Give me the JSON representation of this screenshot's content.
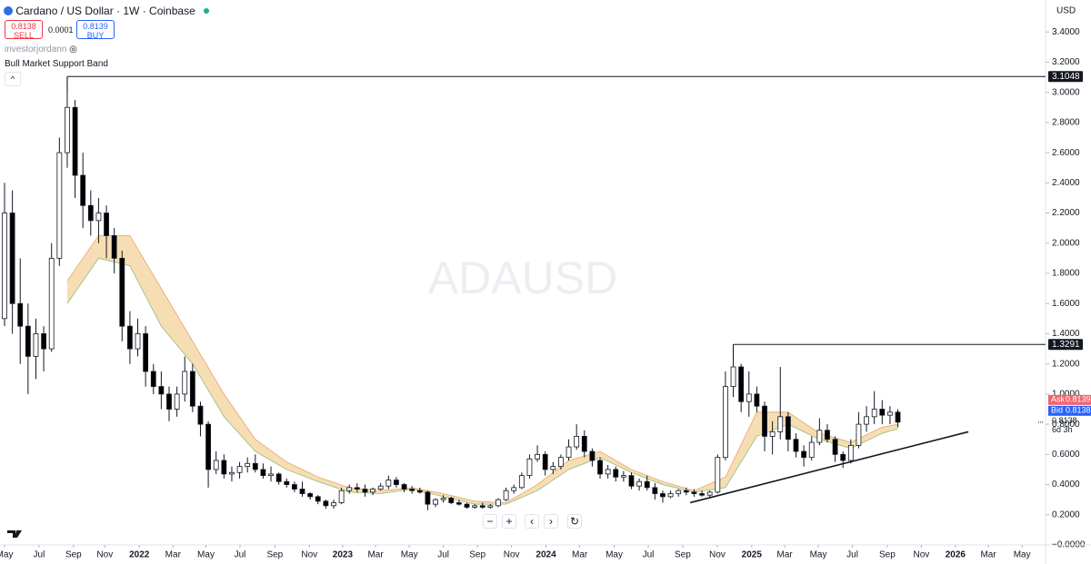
{
  "header": {
    "title": "Cardano / US Dollar · 1W · Coinbase",
    "sell": {
      "price": 0.8138,
      "label": "SELL"
    },
    "spread": 0.0001,
    "buy": {
      "price": 0.8139,
      "label": "BUY"
    },
    "author": "investorjordann",
    "currency": "USD"
  },
  "chart_data": {
    "type": "candlestick",
    "watermark": "ADAUSD",
    "x": [
      0,
      2,
      4,
      6,
      8,
      10,
      12,
      14,
      16,
      18,
      20,
      22,
      24,
      26,
      28,
      30,
      32,
      34,
      36,
      38,
      40,
      42,
      44,
      46,
      48,
      50,
      52,
      54,
      56,
      58,
      60,
      62,
      64,
      66,
      68,
      70,
      72,
      74,
      76,
      78,
      80,
      82,
      84,
      86,
      88,
      90,
      92,
      94,
      96,
      98,
      100,
      102,
      104,
      106,
      108,
      110,
      112,
      114,
      116,
      118,
      120,
      122,
      124,
      126,
      128,
      130,
      132,
      134,
      136,
      138,
      140,
      142,
      144,
      146,
      148,
      150,
      152,
      154,
      156,
      158,
      160,
      162,
      164,
      166,
      168,
      170,
      172,
      174,
      176,
      178,
      180,
      182,
      184,
      186,
      188,
      190,
      192,
      194,
      196,
      198,
      200,
      202,
      204,
      206,
      208,
      210,
      212,
      214,
      216,
      218,
      220,
      222,
      224,
      226,
      228
    ],
    "open": [
      1.5,
      2.2,
      1.6,
      1.45,
      1.25,
      1.4,
      1.3,
      1.9,
      2.6,
      2.9,
      2.45,
      2.25,
      2.15,
      2.2,
      2.05,
      1.9,
      1.45,
      1.3,
      1.4,
      1.15,
      1.05,
      1.0,
      0.9,
      1.0,
      1.15,
      0.92,
      0.8,
      0.5,
      0.56,
      0.47,
      0.48,
      0.52,
      0.54,
      0.5,
      0.46,
      0.47,
      0.42,
      0.4,
      0.37,
      0.34,
      0.32,
      0.29,
      0.26,
      0.28,
      0.36,
      0.38,
      0.37,
      0.35,
      0.37,
      0.39,
      0.43,
      0.4,
      0.37,
      0.36,
      0.35,
      0.27,
      0.3,
      0.31,
      0.28,
      0.27,
      0.25,
      0.26,
      0.25,
      0.26,
      0.3,
      0.36,
      0.38,
      0.46,
      0.57,
      0.6,
      0.5,
      0.52,
      0.58,
      0.65,
      0.72,
      0.62,
      0.56,
      0.47,
      0.5,
      0.45,
      0.46,
      0.39,
      0.42,
      0.38,
      0.34,
      0.32,
      0.34,
      0.36,
      0.35,
      0.34,
      0.33,
      0.35,
      0.58,
      1.05,
      1.18,
      0.95,
      1.0,
      0.92,
      0.72,
      0.75,
      0.85,
      0.7,
      0.62,
      0.58,
      0.68,
      0.76,
      0.7,
      0.6,
      0.56,
      0.66,
      0.8,
      0.85,
      0.9,
      0.86,
      0.88
    ],
    "high": [
      2.4,
      2.35,
      1.9,
      1.6,
      1.5,
      1.45,
      2.0,
      2.7,
      3.1048,
      2.95,
      2.6,
      2.35,
      2.3,
      2.25,
      2.1,
      1.95,
      1.55,
      1.5,
      1.45,
      1.2,
      1.15,
      1.05,
      1.05,
      1.25,
      1.2,
      0.95,
      0.82,
      0.62,
      0.6,
      0.52,
      0.55,
      0.58,
      0.6,
      0.54,
      0.52,
      0.48,
      0.44,
      0.42,
      0.42,
      0.35,
      0.33,
      0.3,
      0.3,
      0.38,
      0.4,
      0.41,
      0.4,
      0.38,
      0.41,
      0.46,
      0.45,
      0.41,
      0.39,
      0.38,
      0.36,
      0.31,
      0.33,
      0.32,
      0.3,
      0.28,
      0.27,
      0.28,
      0.27,
      0.31,
      0.38,
      0.4,
      0.48,
      0.6,
      0.66,
      0.62,
      0.55,
      0.6,
      0.7,
      0.8,
      0.76,
      0.64,
      0.58,
      0.53,
      0.52,
      0.49,
      0.48,
      0.44,
      0.46,
      0.41,
      0.36,
      0.36,
      0.37,
      0.38,
      0.37,
      0.36,
      0.36,
      0.6,
      1.15,
      1.3291,
      1.2,
      1.15,
      1.05,
      0.95,
      0.82,
      1.18,
      0.88,
      0.74,
      0.66,
      0.72,
      0.84,
      0.8,
      0.72,
      0.62,
      0.7,
      0.88,
      0.92,
      1.02,
      0.96,
      0.92,
      0.9
    ],
    "low": [
      1.45,
      1.4,
      1.2,
      1.0,
      1.1,
      1.15,
      1.28,
      1.85,
      2.5,
      2.3,
      2.1,
      2.05,
      2.0,
      1.9,
      1.8,
      1.35,
      1.2,
      1.25,
      1.05,
      1.0,
      0.9,
      0.82,
      0.85,
      0.95,
      0.88,
      0.72,
      0.38,
      0.47,
      0.44,
      0.42,
      0.44,
      0.48,
      0.48,
      0.44,
      0.42,
      0.4,
      0.38,
      0.35,
      0.32,
      0.3,
      0.27,
      0.24,
      0.24,
      0.27,
      0.34,
      0.35,
      0.32,
      0.33,
      0.36,
      0.37,
      0.38,
      0.35,
      0.34,
      0.34,
      0.23,
      0.25,
      0.28,
      0.27,
      0.26,
      0.24,
      0.24,
      0.24,
      0.24,
      0.25,
      0.29,
      0.34,
      0.37,
      0.44,
      0.55,
      0.46,
      0.47,
      0.5,
      0.56,
      0.63,
      0.58,
      0.52,
      0.44,
      0.44,
      0.42,
      0.42,
      0.37,
      0.36,
      0.36,
      0.3,
      0.28,
      0.31,
      0.32,
      0.33,
      0.32,
      0.32,
      0.31,
      0.34,
      0.56,
      0.98,
      0.88,
      0.85,
      0.88,
      0.62,
      0.6,
      0.7,
      0.62,
      0.58,
      0.52,
      0.56,
      0.66,
      0.68,
      0.55,
      0.51,
      0.54,
      0.64,
      0.75,
      0.8,
      0.8,
      0.8,
      0.78
    ],
    "close": [
      2.2,
      1.6,
      1.45,
      1.25,
      1.4,
      1.3,
      1.9,
      2.6,
      2.9,
      2.45,
      2.25,
      2.15,
      2.2,
      2.05,
      1.9,
      1.45,
      1.3,
      1.4,
      1.15,
      1.05,
      1.0,
      0.9,
      1.0,
      1.15,
      0.92,
      0.8,
      0.5,
      0.56,
      0.47,
      0.48,
      0.52,
      0.54,
      0.5,
      0.46,
      0.47,
      0.42,
      0.4,
      0.37,
      0.34,
      0.32,
      0.29,
      0.26,
      0.28,
      0.36,
      0.38,
      0.37,
      0.35,
      0.37,
      0.39,
      0.43,
      0.4,
      0.37,
      0.36,
      0.35,
      0.27,
      0.3,
      0.31,
      0.28,
      0.27,
      0.25,
      0.26,
      0.25,
      0.26,
      0.3,
      0.36,
      0.38,
      0.46,
      0.57,
      0.6,
      0.5,
      0.52,
      0.58,
      0.65,
      0.72,
      0.62,
      0.56,
      0.47,
      0.5,
      0.45,
      0.46,
      0.39,
      0.42,
      0.38,
      0.34,
      0.32,
      0.34,
      0.36,
      0.35,
      0.34,
      0.33,
      0.35,
      0.58,
      1.05,
      1.18,
      0.95,
      1.0,
      0.92,
      0.72,
      0.75,
      0.85,
      0.7,
      0.62,
      0.58,
      0.68,
      0.76,
      0.7,
      0.6,
      0.56,
      0.66,
      0.8,
      0.85,
      0.9,
      0.86,
      0.88,
      0.8138
    ],
    "up_color": "#ffffff",
    "down_color": "#000000",
    "band": {
      "name": "Bull Market Support Band",
      "color": "#f6d7a7",
      "x": [
        16,
        24,
        32,
        40,
        48,
        56,
        64,
        72,
        80,
        88,
        96,
        104,
        112,
        120,
        128,
        136,
        144,
        152,
        160,
        168,
        176,
        184,
        192,
        200,
        208,
        216,
        224,
        228
      ],
      "upper": [
        1.75,
        2.05,
        2.05,
        1.7,
        1.35,
        1.0,
        0.7,
        0.55,
        0.45,
        0.38,
        0.36,
        0.38,
        0.34,
        0.29,
        0.28,
        0.4,
        0.56,
        0.62,
        0.5,
        0.42,
        0.36,
        0.45,
        0.88,
        0.88,
        0.74,
        0.68,
        0.78,
        0.8
      ],
      "lower": [
        1.6,
        1.9,
        1.85,
        1.45,
        1.2,
        0.85,
        0.62,
        0.5,
        0.42,
        0.35,
        0.34,
        0.37,
        0.32,
        0.27,
        0.27,
        0.36,
        0.5,
        0.58,
        0.48,
        0.4,
        0.35,
        0.38,
        0.72,
        0.8,
        0.7,
        0.64,
        0.74,
        0.77
      ]
    },
    "levels": [
      {
        "value": 3.1048,
        "from": 16
      },
      {
        "value": 1.3291,
        "from": 186
      }
    ],
    "trendline": {
      "x": [
        175,
        246
      ],
      "y": [
        0.28,
        0.75
      ]
    },
    "ask": {
      "label": "Ask",
      "value": 0.8139
    },
    "bid": {
      "label": "Bid",
      "value": 0.8138
    },
    "last": 0.8138,
    "countdown": "6d 3h",
    "xlim": [
      -1.16,
      265.7
    ],
    "xticks": [
      {
        "value": 0,
        "label": "May"
      },
      {
        "value": 8.8,
        "label": "Jul"
      },
      {
        "value": 17.6,
        "label": "Sep"
      },
      {
        "value": 25.6,
        "label": "Nov"
      },
      {
        "value": 34.4,
        "label": "2022"
      },
      {
        "value": 43,
        "label": "Mar"
      },
      {
        "value": 51.4,
        "label": "May"
      },
      {
        "value": 60.1,
        "label": "Jul"
      },
      {
        "value": 69,
        "label": "Sep"
      },
      {
        "value": 77.8,
        "label": "Nov"
      },
      {
        "value": 86.3,
        "label": "2023"
      },
      {
        "value": 94.7,
        "label": "Mar"
      },
      {
        "value": 103.3,
        "label": "May"
      },
      {
        "value": 112,
        "label": "Jul"
      },
      {
        "value": 120.7,
        "label": "Sep"
      },
      {
        "value": 129.4,
        "label": "Nov"
      },
      {
        "value": 138.2,
        "label": "2024"
      },
      {
        "value": 146.8,
        "label": "Mar"
      },
      {
        "value": 155.6,
        "label": "May"
      },
      {
        "value": 164.3,
        "label": "Jul"
      },
      {
        "value": 173.1,
        "label": "Sep"
      },
      {
        "value": 181.9,
        "label": "Nov"
      },
      {
        "value": 190.7,
        "label": "2025"
      },
      {
        "value": 199.1,
        "label": "Mar"
      },
      {
        "value": 207.7,
        "label": "May"
      },
      {
        "value": 216.4,
        "label": "Jul"
      },
      {
        "value": 225.3,
        "label": "Sep"
      },
      {
        "value": 234,
        "label": "Nov"
      },
      {
        "value": 242.7,
        "label": "2026"
      },
      {
        "value": 251.1,
        "label": "Mar"
      },
      {
        "value": 259.7,
        "label": "May"
      }
    ],
    "ylim": [
      0,
      3.6
    ],
    "yticks": [
      {
        "value": 0,
        "label": "−0.0000"
      },
      {
        "value": 0.2,
        "label": "0.2000"
      },
      {
        "value": 0.4,
        "label": "0.4000"
      },
      {
        "value": 0.6,
        "label": "0.6000"
      },
      {
        "value": 0.8,
        "label": "0.8000"
      },
      {
        "value": 1.0,
        "label": "1.0000"
      },
      {
        "value": 1.2,
        "label": "1.2000"
      },
      {
        "value": 1.4,
        "label": "1.4000"
      },
      {
        "value": 1.6,
        "label": "1.6000"
      },
      {
        "value": 1.8,
        "label": "1.8000"
      },
      {
        "value": 2.0,
        "label": "2.0000"
      },
      {
        "value": 2.2,
        "label": "2.2000"
      },
      {
        "value": 2.4,
        "label": "2.4000"
      },
      {
        "value": 2.6,
        "label": "2.6000"
      },
      {
        "value": 2.8,
        "label": "2.8000"
      },
      {
        "value": 3.0,
        "label": "3.0000"
      },
      {
        "value": 3.2,
        "label": "3.2000"
      },
      {
        "value": 3.4,
        "label": "3.4000"
      }
    ]
  }
}
